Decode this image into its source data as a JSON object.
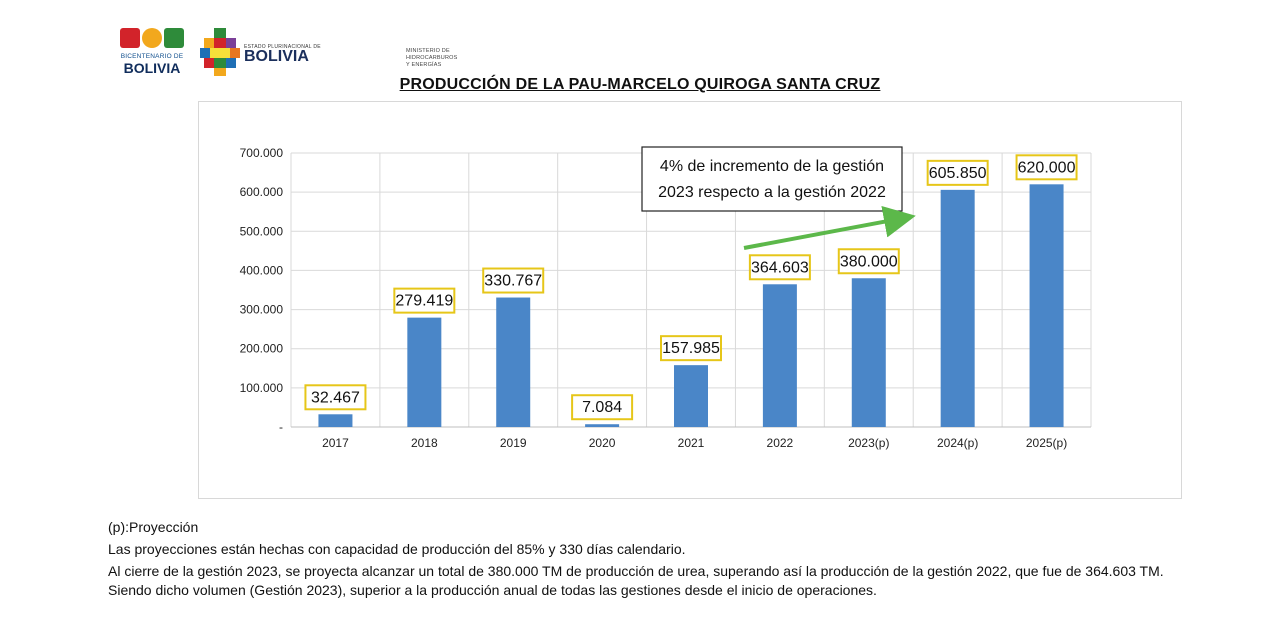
{
  "logos": {
    "bicentenario": {
      "small": "BICENTENARIO DE",
      "main": "BOLIVIA"
    },
    "estado": {
      "small": "ESTADO PLURINACIONAL DE",
      "big": "BOLIVIA"
    },
    "ministerio": [
      "MINISTERIO DE",
      "HIDROCARBUROS Y ENERGÍAS"
    ]
  },
  "page_title": "PRODUCCIÓN DE LA PAU-MARCELO QUIROGA SANTA CRUZ",
  "chart_data": {
    "type": "bar",
    "categories": [
      "2017",
      "2018",
      "2019",
      "2020",
      "2021",
      "2022",
      "2023(p)",
      "2024(p)",
      "2025(p)"
    ],
    "values": [
      32467,
      279419,
      330767,
      7084,
      157985,
      364603,
      380000,
      605850,
      620000
    ],
    "data_labels": [
      "32.467",
      "279.419",
      "330.767",
      "7.084",
      "157.985",
      "364.603",
      "380.000",
      "605.850",
      "620.000"
    ],
    "ylim": [
      0,
      700000
    ],
    "yticks": [
      0,
      100000,
      200000,
      300000,
      400000,
      500000,
      600000,
      700000
    ],
    "ytick_labels": [
      "-",
      "100.000",
      "200.000",
      "300.000",
      "400.000",
      "500.000",
      "600.000",
      "700.000"
    ],
    "grid": true,
    "legend": "none",
    "title": "",
    "xlabel": "",
    "ylabel": "",
    "annotation": {
      "lines": [
        "4% de incremento de la gestión",
        "2023 respecto a la gestión 2022"
      ],
      "arrow_color": "#5cb84a"
    },
    "colors": {
      "bar": "#4a86c8",
      "label_border": "#e6c619",
      "grid": "#d9d9d9"
    }
  },
  "notes": [
    "(p):Proyección",
    "Las proyecciones están hechas con capacidad de producción del 85%  y 330 días calendario.",
    "Al cierre de la gestión 2023, se proyecta alcanzar un total de 380.000 TM de producción de urea, superando así la producción de la gestión 2022, que fue de 364.603 TM. Siendo dicho volumen (Gestión 2023), superior a la producción anual de todas las gestiones desde el inicio de operaciones."
  ]
}
